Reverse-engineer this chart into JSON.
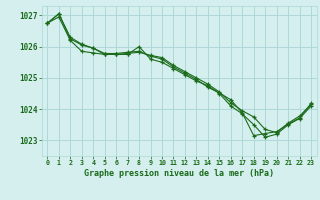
{
  "title": "Graphe pression niveau de la mer (hPa)",
  "bg_color": "#d5efef",
  "grid_color": "#aed8d8",
  "line_color": "#1a6b1a",
  "marker_color": "#1a6b1a",
  "xlim": [
    -0.5,
    23.5
  ],
  "ylim": [
    1022.5,
    1027.3
  ],
  "yticks": [
    1023,
    1024,
    1025,
    1026,
    1027
  ],
  "xticks": [
    0,
    1,
    2,
    3,
    4,
    5,
    6,
    7,
    8,
    9,
    10,
    11,
    12,
    13,
    14,
    15,
    16,
    17,
    18,
    19,
    20,
    21,
    22,
    23
  ],
  "series1_x": [
    0,
    1,
    2,
    3,
    4,
    5,
    6,
    7,
    8,
    9,
    10,
    11,
    12,
    13,
    14,
    15,
    16,
    17,
    18,
    19,
    20,
    21,
    22,
    23
  ],
  "series1_y": [
    1026.75,
    1026.95,
    1026.2,
    1025.85,
    1025.8,
    1025.75,
    1025.75,
    1025.75,
    1026.0,
    1025.6,
    1025.5,
    1025.3,
    1025.1,
    1024.9,
    1024.75,
    1024.5,
    1024.1,
    1023.85,
    1023.5,
    1023.1,
    1023.2,
    1023.5,
    1023.7,
    1024.1
  ],
  "series2_x": [
    0,
    1,
    2,
    3,
    4,
    5,
    6,
    7,
    8,
    9,
    10,
    11,
    12,
    13,
    14,
    15,
    16,
    17,
    18,
    19,
    20,
    21,
    22,
    23
  ],
  "series2_y": [
    1026.75,
    1027.05,
    1026.25,
    1026.05,
    1025.95,
    1025.75,
    1025.75,
    1025.78,
    1025.82,
    1025.72,
    1025.65,
    1025.4,
    1025.2,
    1025.0,
    1024.8,
    1024.55,
    1024.2,
    1023.95,
    1023.75,
    1023.35,
    1023.25,
    1023.55,
    1023.78,
    1024.15
  ],
  "series3_x": [
    0,
    1,
    2,
    3,
    4,
    5,
    6,
    7,
    8,
    9,
    10,
    11,
    12,
    13,
    14,
    15,
    16,
    17,
    18,
    19,
    20,
    21,
    22,
    23
  ],
  "series3_y": [
    1026.75,
    1027.05,
    1026.3,
    1026.08,
    1025.95,
    1025.78,
    1025.78,
    1025.82,
    1025.85,
    1025.7,
    1025.6,
    1025.35,
    1025.15,
    1024.95,
    1024.7,
    1024.52,
    1024.3,
    1023.88,
    1023.15,
    1023.22,
    1023.28,
    1023.52,
    1023.72,
    1024.18
  ]
}
